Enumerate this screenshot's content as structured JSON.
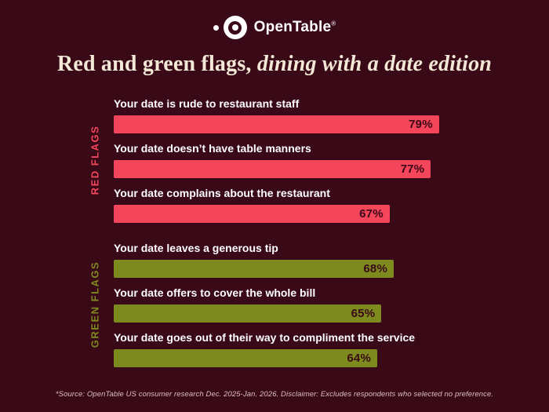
{
  "page": {
    "background": "#3A0917",
    "title_color": "#F2E8D5",
    "muted_text_color": "#D9BFC5",
    "white": "#FFFFFF"
  },
  "logo": {
    "brand": "OpenTable",
    "registered": "®"
  },
  "title": {
    "regular": "Red and green flags, ",
    "italic": "dining with a date edition"
  },
  "chart_data": {
    "type": "bar",
    "orientation": "horizontal",
    "title": "Red and green flags, dining with a date edition",
    "xlim": [
      0,
      100
    ],
    "value_suffix": "%",
    "grid": false,
    "legend": false,
    "groups": [
      {
        "label": "RED FLAGS",
        "color": "#F4455A",
        "items": [
          {
            "label": "Your date is rude to restaurant staff",
            "value": 79,
            "display": "79%"
          },
          {
            "label": "Your date doesn’t have table manners",
            "value": 77,
            "display": "77%"
          },
          {
            "label": "Your date complains about the restaurant",
            "value": 67,
            "display": "67%"
          }
        ]
      },
      {
        "label": "GREEN FLAGS",
        "color": "#7D8B1E",
        "items": [
          {
            "label": "Your date leaves a generous tip",
            "value": 68,
            "display": "68%"
          },
          {
            "label": "Your date offers to cover the whole bill",
            "value": 65,
            "display": "65%"
          },
          {
            "label": "Your date goes out of their way to compliment the service",
            "value": 64,
            "display": "64%"
          }
        ]
      }
    ]
  },
  "footnote": "*Source: OpenTable US consumer research Dec. 2025-Jan. 2026. Disclaimer: Excludes respondents who selected no preference."
}
